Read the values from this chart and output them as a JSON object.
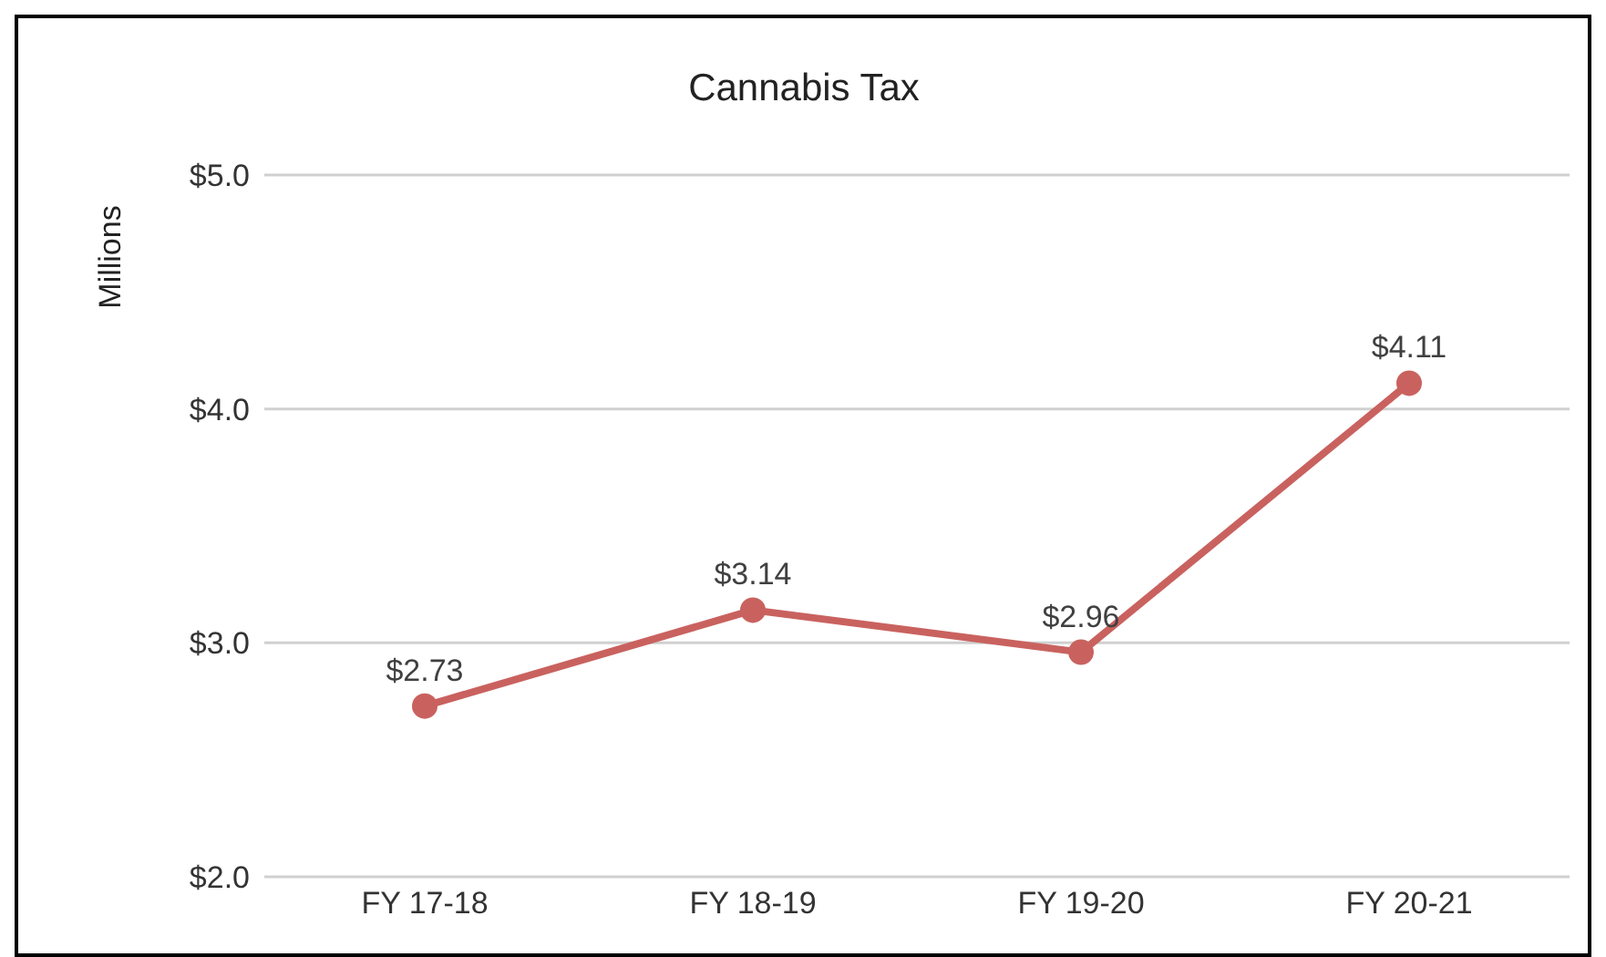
{
  "chart_data": {
    "type": "line",
    "title": "Cannabis Tax",
    "ylabel": "Millions",
    "categories": [
      "FY 17-18",
      "FY 18-19",
      "FY 19-20",
      "FY 20-21"
    ],
    "series": [
      {
        "color": "#c9625f",
        "values": [
          2.73,
          3.14,
          2.96,
          4.11
        ],
        "value_labels": [
          "$2.73",
          "$3.14",
          "$2.96",
          "$4.11"
        ]
      }
    ],
    "ylim": [
      2,
      5
    ],
    "yticks": [
      {
        "value": 2,
        "label": "$2.0"
      },
      {
        "value": 3,
        "label": "$3.0"
      },
      {
        "value": 4,
        "label": "$4.0"
      },
      {
        "value": 5,
        "label": "$5.0"
      }
    ],
    "grid": "y",
    "marker": "circle",
    "line_style": "solid"
  }
}
